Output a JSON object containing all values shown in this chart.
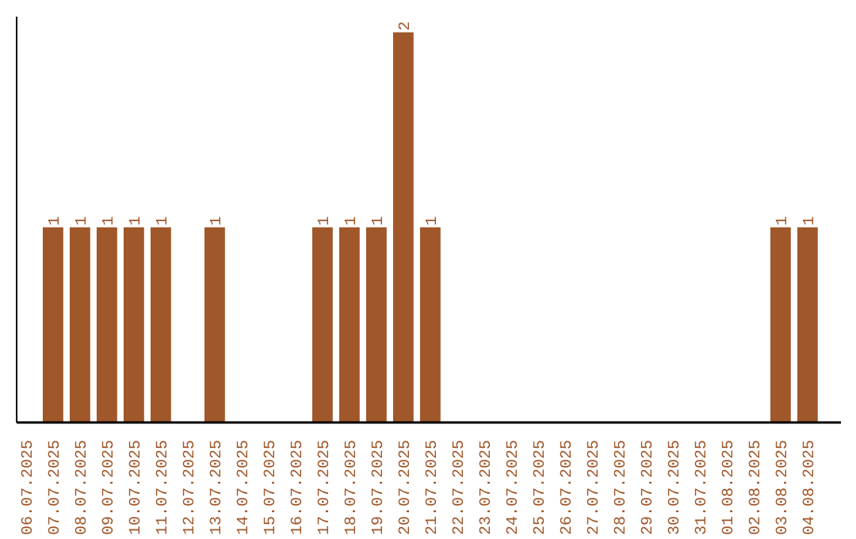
{
  "chart_data": {
    "type": "bar",
    "categories": [
      "06.07.2025",
      "07.07.2025",
      "08.07.2025",
      "09.07.2025",
      "10.07.2025",
      "11.07.2025",
      "12.07.2025",
      "13.07.2025",
      "14.07.2025",
      "15.07.2025",
      "16.07.2025",
      "17.07.2025",
      "18.07.2025",
      "19.07.2025",
      "20.07.2025",
      "21.07.2025",
      "22.07.2025",
      "23.07.2025",
      "24.07.2025",
      "25.07.2025",
      "26.07.2025",
      "27.07.2025",
      "28.07.2025",
      "29.07.2025",
      "30.07.2025",
      "31.07.2025",
      "01.08.2025",
      "02.08.2025",
      "03.08.2025",
      "04.08.2025"
    ],
    "values": [
      0,
      1,
      1,
      1,
      1,
      1,
      0,
      1,
      0,
      0,
      0,
      1,
      1,
      1,
      2,
      1,
      0,
      0,
      0,
      0,
      0,
      0,
      0,
      0,
      0,
      0,
      0,
      0,
      1,
      1
    ],
    "value_labels": [
      null,
      "1",
      "1",
      "1",
      "1",
      "1",
      null,
      "1",
      null,
      null,
      null,
      "1",
      "1",
      "1",
      "2",
      "1",
      null,
      null,
      null,
      null,
      null,
      null,
      null,
      null,
      null,
      null,
      null,
      null,
      "1",
      "1"
    ],
    "color": "#a0572a",
    "grid": false
  }
}
